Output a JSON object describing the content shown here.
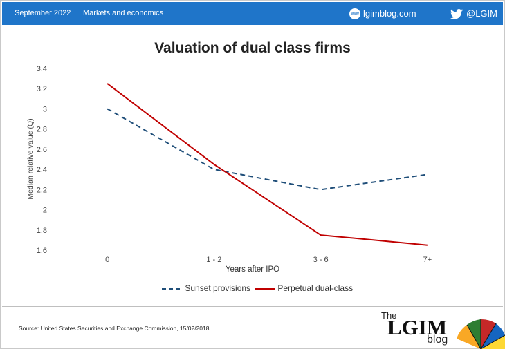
{
  "header": {
    "date": "September 2022",
    "separator": "|",
    "section": "Markets and economics",
    "www_badge": "www",
    "blog_url": "lgimblog.com",
    "twitter_handle": "@LGIM",
    "color": "#1f75c9"
  },
  "chart_data": {
    "type": "line",
    "title": "Valuation of dual class firms",
    "xlabel": "Years after IPO",
    "ylabel": "Median relative value (Q)",
    "categories": [
      "0",
      "1 - 2",
      "3 - 6",
      "7+"
    ],
    "ylim": [
      1.6,
      3.4
    ],
    "yticks": [
      "1.6",
      "1.8",
      "2",
      "2.2",
      "2.4",
      "2.6",
      "2.8",
      "3",
      "3.2",
      "3.4"
    ],
    "grid": false,
    "legend_position": "bottom",
    "series": [
      {
        "name": "Sunset provisions",
        "values": [
          3.0,
          2.4,
          2.2,
          2.35
        ],
        "color": "#1f4e79",
        "style": "dashed"
      },
      {
        "name": "Perpetual dual-class",
        "values": [
          3.25,
          2.45,
          1.75,
          1.65
        ],
        "color": "#c00000",
        "style": "solid"
      }
    ]
  },
  "footer": {
    "source": "Source: United States Securities and Exchange Commission, 15/02/2018.",
    "logo_the": "The",
    "logo_lgim": "LGIM",
    "logo_blog": "blog"
  }
}
